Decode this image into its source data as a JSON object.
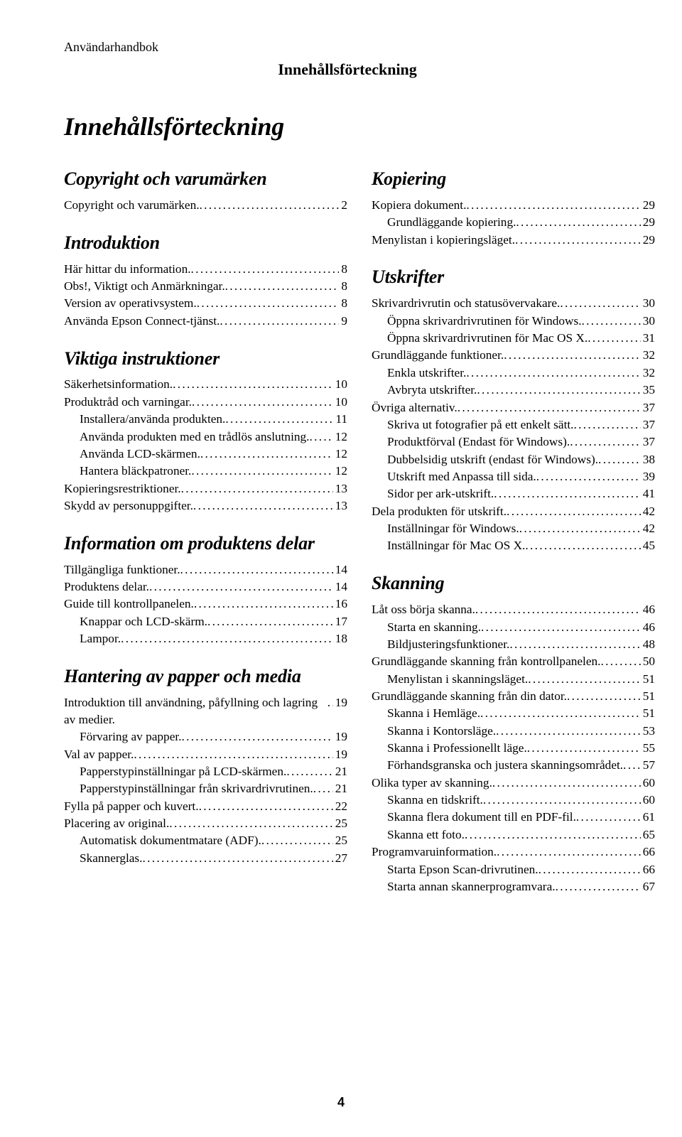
{
  "running_head": "Användarhandbok",
  "top_centered": "Innehållsförteckning",
  "main_title": "Innehållsförteckning",
  "page_number": "4",
  "left_sections": [
    {
      "heading": "Copyright och varumärken",
      "entries": [
        {
          "label": "Copyright och varumärken.",
          "page": "2",
          "level": 0
        }
      ]
    },
    {
      "heading": "Introduktion",
      "entries": [
        {
          "label": "Här hittar du information.",
          "page": "8",
          "level": 0
        },
        {
          "label": "Obs!, Viktigt och Anmärkningar.",
          "page": "8",
          "level": 0
        },
        {
          "label": "Version av operativsystem.",
          "page": "8",
          "level": 0
        },
        {
          "label": "Använda Epson Connect-tjänst.",
          "page": "9",
          "level": 0
        }
      ]
    },
    {
      "heading": "Viktiga instruktioner",
      "entries": [
        {
          "label": "Säkerhetsinformation.",
          "page": "10",
          "level": 0
        },
        {
          "label": "Produktråd och varningar.",
          "page": "10",
          "level": 0
        },
        {
          "label": "Installera/använda produkten.",
          "page": "11",
          "level": 1
        },
        {
          "label": "Använda produkten med en trådlös anslutning.",
          "page": "12",
          "level": 1
        },
        {
          "label": "Använda LCD-skärmen.",
          "page": "12",
          "level": 1
        },
        {
          "label": "Hantera bläckpatroner.",
          "page": "12",
          "level": 1
        },
        {
          "label": "Kopieringsrestriktioner.",
          "page": "13",
          "level": 0
        },
        {
          "label": "Skydd av personuppgifter.",
          "page": "13",
          "level": 0
        }
      ]
    },
    {
      "heading": "Information om produktens delar",
      "entries": [
        {
          "label": "Tillgängliga funktioner.",
          "page": "14",
          "level": 0
        },
        {
          "label": "Produktens delar.",
          "page": "14",
          "level": 0
        },
        {
          "label": "Guide till kontrollpanelen.",
          "page": "16",
          "level": 0
        },
        {
          "label": "Knappar och LCD-skärm.",
          "page": "17",
          "level": 1
        },
        {
          "label": "Lampor.",
          "page": "18",
          "level": 1
        }
      ]
    },
    {
      "heading": "Hantering av papper och media",
      "entries": [
        {
          "label": "Introduktion till användning, påfyllning och lagring av medier.",
          "page": "19",
          "level": 0
        },
        {
          "label": "Förvaring av papper.",
          "page": "19",
          "level": 1
        },
        {
          "label": "Val av papper.",
          "page": "19",
          "level": 0
        },
        {
          "label": "Papperstypinställningar på LCD-skärmen.",
          "page": "21",
          "level": 1
        },
        {
          "label": "Papperstypinställningar från skrivardrivrutinen.",
          "page": "21",
          "level": 1
        },
        {
          "label": "Fylla på papper och kuvert.",
          "page": "22",
          "level": 0
        },
        {
          "label": "Placering av original.",
          "page": "25",
          "level": 0
        },
        {
          "label": "Automatisk dokumentmatare (ADF).",
          "page": "25",
          "level": 1
        },
        {
          "label": "Skannerglas.",
          "page": "27",
          "level": 1
        }
      ]
    }
  ],
  "right_sections": [
    {
      "heading": "Kopiering",
      "entries": [
        {
          "label": "Kopiera dokument.",
          "page": "29",
          "level": 0
        },
        {
          "label": "Grundläggande kopiering.",
          "page": "29",
          "level": 1
        },
        {
          "label": "Menylistan i kopieringsläget.",
          "page": "29",
          "level": 0
        }
      ]
    },
    {
      "heading": "Utskrifter",
      "entries": [
        {
          "label": "Skrivardrivrutin och statusövervakare.",
          "page": "30",
          "level": 0
        },
        {
          "label": "Öppna skrivardrivrutinen för Windows.",
          "page": "30",
          "level": 1
        },
        {
          "label": "Öppna skrivardrivrutinen för Mac OS X.",
          "page": "31",
          "level": 1
        },
        {
          "label": "Grundläggande funktioner.",
          "page": "32",
          "level": 0
        },
        {
          "label": "Enkla utskrifter.",
          "page": "32",
          "level": 1
        },
        {
          "label": "Avbryta utskrifter.",
          "page": "35",
          "level": 1
        },
        {
          "label": "Övriga alternativ.",
          "page": "37",
          "level": 0
        },
        {
          "label": "Skriva ut fotografier på ett enkelt sätt.",
          "page": "37",
          "level": 1
        },
        {
          "label": "Produktförval (Endast för Windows).",
          "page": "37",
          "level": 1
        },
        {
          "label": "Dubbelsidig utskrift (endast för Windows).",
          "page": "38",
          "level": 1
        },
        {
          "label": "Utskrift med Anpassa till sida.",
          "page": "39",
          "level": 1
        },
        {
          "label": "Sidor per ark-utskrift.",
          "page": "41",
          "level": 1
        },
        {
          "label": "Dela produkten för utskrift.",
          "page": "42",
          "level": 0
        },
        {
          "label": "Inställningar för Windows.",
          "page": "42",
          "level": 1
        },
        {
          "label": "Inställningar för Mac OS X.",
          "page": "45",
          "level": 1
        }
      ]
    },
    {
      "heading": "Skanning",
      "entries": [
        {
          "label": "Låt oss börja skanna.",
          "page": "46",
          "level": 0
        },
        {
          "label": "Starta en skanning.",
          "page": "46",
          "level": 1
        },
        {
          "label": "Bildjusteringsfunktioner.",
          "page": "48",
          "level": 1
        },
        {
          "label": "Grundläggande skanning från kontrollpanelen.",
          "page": "50",
          "level": 0
        },
        {
          "label": "Menylistan i skanningsläget.",
          "page": "51",
          "level": 1
        },
        {
          "label": "Grundläggande skanning från din dator.",
          "page": "51",
          "level": 0
        },
        {
          "label": "Skanna i Hemläge.",
          "page": "51",
          "level": 1
        },
        {
          "label": "Skanna i Kontorsläge.",
          "page": "53",
          "level": 1
        },
        {
          "label": "Skanna i Professionellt läge.",
          "page": "55",
          "level": 1
        },
        {
          "label": "Förhandsgranska och justera skanningsområdet.",
          "page": "57",
          "level": 1
        },
        {
          "label": "Olika typer av skanning.",
          "page": "60",
          "level": 0
        },
        {
          "label": "Skanna en tidskrift.",
          "page": "60",
          "level": 1
        },
        {
          "label": "Skanna flera dokument till en PDF-fil.",
          "page": "61",
          "level": 1
        },
        {
          "label": "Skanna ett foto.",
          "page": "65",
          "level": 1
        },
        {
          "label": "Programvaruinformation.",
          "page": "66",
          "level": 0
        },
        {
          "label": "Starta Epson Scan-drivrutinen.",
          "page": "66",
          "level": 1
        },
        {
          "label": "Starta annan skannerprogramvara.",
          "page": "67",
          "level": 1
        }
      ]
    }
  ]
}
